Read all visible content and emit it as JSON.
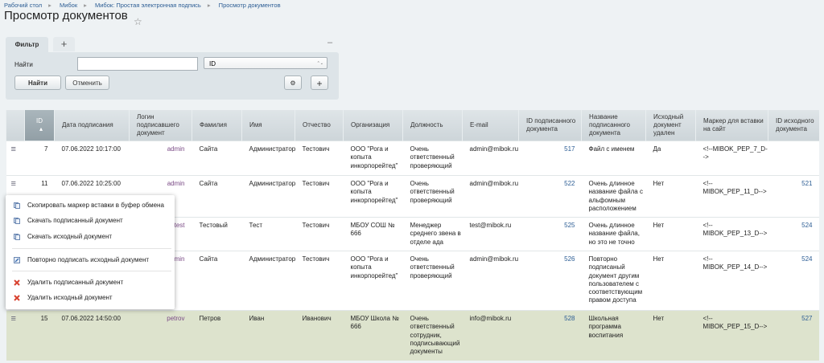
{
  "breadcrumbs": [
    "Рабочий стол",
    "Мибок",
    "Мибок: Простая электронная подпись",
    "Просмотр документов"
  ],
  "header": {
    "title": "Просмотр документов"
  },
  "filter": {
    "tab": "Фильтр",
    "field_label": "Найти",
    "select_value": "ID",
    "buttons": [
      "Найти",
      "Отменить"
    ]
  },
  "table": {
    "columns": [
      "ID",
      "Дата подписания",
      "Логин подписавшего документ",
      "Фамилия",
      "Имя",
      "Отчество",
      "Организация",
      "Должность",
      "E-mail",
      "ID подписанного документа",
      "Название подписанного документа",
      "Исходный документ удален",
      "Маркер для вставки на сайт",
      "ID исходного документа"
    ],
    "rows": [
      [
        7,
        "07.06.2022 10:17:00",
        "admin",
        "Сайта",
        "Администратор",
        "Тестович",
        "ООО \"Рога и копыта инкорпорейтед\"",
        "Очень ответственный проверяющий",
        "admin@mibok.ru",
        517,
        "Файл с именем",
        "Да",
        "<!--MIBOK_PEP_7_D-->",
        null
      ],
      [
        11,
        "07.06.2022 10:25:00",
        "admin",
        "Сайта",
        "Администратор",
        "Тестович",
        "ООО \"Рога и копыта инкорпорейтед\"",
        "Очень ответственный проверяющий",
        "admin@mibok.ru",
        522,
        "Очень длинное название файла с альфомным расположением",
        "Нет",
        "<!--MIBOK_PEP_11_D-->",
        521
      ],
      [
        null,
        null,
        "test",
        "Тестовый",
        "Тест",
        "Тестович",
        "МБОУ СОШ № 666",
        "Менеджер среднего звена в отделе ада",
        "test@mibok.ru",
        525,
        "Очень длинное название файла, но это не точно",
        "Нет",
        "<!--MIBOK_PEP_13_D-->",
        524
      ],
      [
        null,
        null,
        "admin",
        "Сайта",
        "Администратор",
        "Тестович",
        "ООО \"Рога и копыта инкорпорейтед\"",
        "Очень ответственный проверяющий",
        "admin@mibok.ru",
        526,
        "Повторно подписаный документ другим пользователем с соответствующим правом доступа",
        "Нет",
        "<!--MIBOK_PEP_14_D-->",
        524
      ],
      [
        15,
        "07.06.2022 14:50:00",
        "petrov",
        "Петров",
        "Иван",
        "Иванович",
        "МБОУ Школа № 666",
        "Очень ответственный сотрудник, подписывающий документы",
        "info@mibok.ru",
        528,
        "Школьная программа воспитания",
        "Нет",
        "<!--MIBOK_PEP_15_D-->",
        527
      ]
    ]
  },
  "context_menu": {
    "items": [
      "Скопировать маркер вставки в буфер обмена",
      "Скачать подписанный документ",
      "Скачать исходный документ",
      "Повторно подписать исходный документ",
      "Удалить подписанный документ",
      "Удалить исходный документ"
    ]
  }
}
